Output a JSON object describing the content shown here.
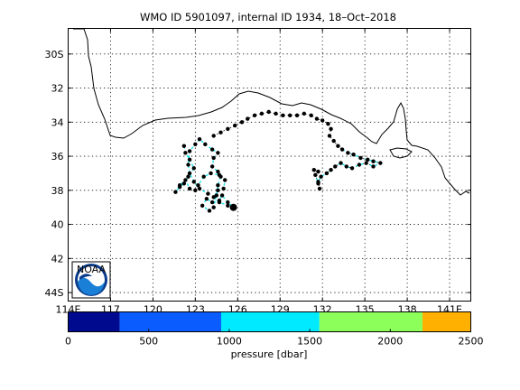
{
  "chart_data": [
    {
      "type": "scatter",
      "title": "WMO ID 5901097, internal ID 1934, 18–Oct–2018",
      "x_tick_labels": [
        "114E",
        "117",
        "120",
        "123",
        "126",
        "129",
        "132",
        "135",
        "138",
        "141E"
      ],
      "x_ticks": [
        114,
        117,
        120,
        123,
        126,
        129,
        132,
        135,
        138,
        141
      ],
      "y_tick_labels": [
        "30S",
        "32",
        "34",
        "36",
        "38",
        "40",
        "42",
        "44S"
      ],
      "y_ticks": [
        -30,
        -32,
        -34,
        -36,
        -38,
        -40,
        -42,
        -44
      ],
      "xlim": [
        114,
        142.5
      ],
      "ylim": [
        -44.5,
        -28.5
      ],
      "grid": true,
      "logo": "NOAA",
      "series": [
        {
          "values": [
            [
              122.2,
              -35.4
            ],
            [
              122.3,
              -35.8
            ],
            [
              122.6,
              -36.2
            ],
            [
              122.9,
              -36.7
            ],
            [
              122.5,
              -37.2
            ],
            [
              122.2,
              -37.6
            ],
            [
              121.9,
              -37.8
            ],
            [
              121.6,
              -38.1
            ],
            [
              121.9,
              -37.7
            ],
            [
              122.3,
              -37.4
            ],
            [
              122.6,
              -37.9
            ],
            [
              123.0,
              -38.0
            ],
            [
              123.2,
              -37.7
            ],
            [
              123.6,
              -37.2
            ],
            [
              124.1,
              -37.0
            ],
            [
              124.7,
              -37.1
            ],
            [
              125.1,
              -37.4
            ],
            [
              125.0,
              -37.9
            ],
            [
              124.6,
              -38.0
            ],
            [
              124.3,
              -38.4
            ],
            [
              124.7,
              -38.7
            ],
            [
              125.3,
              -38.9
            ],
            [
              125.7,
              -39.0
            ],
            [
              125.3,
              -38.7
            ],
            [
              124.9,
              -38.3
            ],
            [
              124.7,
              -38.6
            ],
            [
              124.2,
              -38.7
            ],
            [
              123.8,
              -38.5
            ],
            [
              123.5,
              -38.9
            ],
            [
              124.0,
              -39.2
            ],
            [
              124.3,
              -39.0
            ],
            [
              124.5,
              -38.3
            ],
            [
              124.6,
              -37.7
            ],
            [
              124.8,
              -37.2
            ],
            [
              124.6,
              -36.9
            ],
            [
              124.2,
              -36.6
            ],
            [
              124.3,
              -36.1
            ],
            [
              124.6,
              -35.8
            ],
            [
              124.2,
              -35.6
            ],
            [
              123.7,
              -35.3
            ],
            [
              123.3,
              -35.0
            ],
            [
              123.0,
              -35.3
            ],
            [
              122.6,
              -35.7
            ],
            [
              122.5,
              -36.5
            ],
            [
              122.6,
              -37.0
            ],
            [
              122.9,
              -37.5
            ],
            [
              123.3,
              -37.9
            ],
            [
              123.9,
              -38.2
            ]
          ]
        },
        {
          "values": [
            [
              124.3,
              -34.8
            ],
            [
              124.8,
              -34.6
            ],
            [
              125.3,
              -34.4
            ],
            [
              125.8,
              -34.2
            ],
            [
              126.3,
              -34.0
            ],
            [
              126.7,
              -33.8
            ],
            [
              127.2,
              -33.6
            ],
            [
              127.7,
              -33.5
            ],
            [
              128.2,
              -33.4
            ],
            [
              128.7,
              -33.5
            ],
            [
              129.2,
              -33.6
            ],
            [
              129.7,
              -33.6
            ],
            [
              130.2,
              -33.6
            ],
            [
              130.7,
              -33.5
            ],
            [
              131.2,
              -33.6
            ],
            [
              131.6,
              -33.8
            ],
            [
              132.0,
              -33.9
            ],
            [
              132.4,
              -34.1
            ],
            [
              132.6,
              -34.4
            ],
            [
              132.5,
              -34.8
            ],
            [
              132.8,
              -35.1
            ],
            [
              133.1,
              -35.4
            ],
            [
              133.4,
              -35.6
            ],
            [
              133.8,
              -35.8
            ],
            [
              134.2,
              -35.9
            ],
            [
              134.7,
              -36.1
            ],
            [
              135.2,
              -36.2
            ],
            [
              135.6,
              -36.3
            ],
            [
              136.1,
              -36.4
            ],
            [
              135.6,
              -36.6
            ],
            [
              135.1,
              -36.4
            ],
            [
              134.6,
              -36.5
            ],
            [
              134.1,
              -36.7
            ],
            [
              133.7,
              -36.6
            ],
            [
              133.3,
              -36.4
            ],
            [
              132.9,
              -36.6
            ],
            [
              132.6,
              -36.8
            ],
            [
              132.3,
              -37.0
            ],
            [
              131.9,
              -37.2
            ],
            [
              131.7,
              -37.5
            ],
            [
              131.8,
              -37.9
            ],
            [
              131.7,
              -37.6
            ],
            [
              131.5,
              -37.1
            ],
            [
              131.4,
              -36.8
            ],
            [
              131.7,
              -36.9
            ]
          ]
        }
      ]
    },
    {
      "type": "heatmap",
      "xlabel": "pressure [dbar]",
      "x_tick_labels": [
        "0",
        "500",
        "1000",
        "1500",
        "2000",
        "2500"
      ],
      "x_ticks": [
        0,
        500,
        1000,
        1500,
        2000,
        2500
      ],
      "xlim": [
        0,
        2500
      ],
      "bins": [
        {
          "from": 0,
          "to": 320,
          "color": "#000a8f"
        },
        {
          "from": 320,
          "to": 950,
          "color": "#0a5cff"
        },
        {
          "from": 950,
          "to": 1560,
          "color": "#00eaff"
        },
        {
          "from": 1560,
          "to": 2200,
          "color": "#8cff5a"
        },
        {
          "from": 2200,
          "to": 2500,
          "color": "#ffb000"
        }
      ]
    }
  ]
}
